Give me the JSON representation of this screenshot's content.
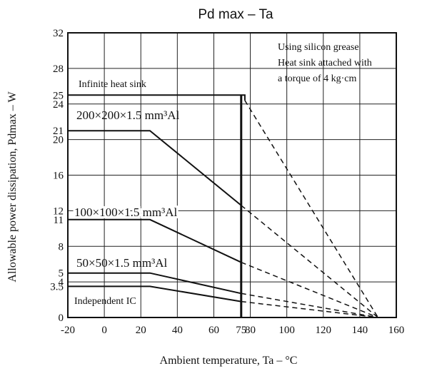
{
  "chart_data": {
    "type": "line",
    "title": "Pd max – Ta",
    "xlabel": "Ambient temperature, Ta – °C",
    "ylabel": "Allowable power dissipation, Pdmax – W",
    "xlim": [
      -20,
      160
    ],
    "ylim": [
      0,
      32
    ],
    "grid": true,
    "x_ticks": [
      {
        "value": -20,
        "label": "-20"
      },
      {
        "value": 0,
        "label": "0"
      },
      {
        "value": 20,
        "label": "20"
      },
      {
        "value": 40,
        "label": "40"
      },
      {
        "value": 60,
        "label": "60"
      },
      {
        "value": 75,
        "label": "75"
      },
      {
        "value": 80,
        "label": "80"
      },
      {
        "value": 100,
        "label": "100"
      },
      {
        "value": 120,
        "label": "120"
      },
      {
        "value": 140,
        "label": "140"
      },
      {
        "value": 160,
        "label": "160"
      }
    ],
    "y_ticks": [
      {
        "value": 0,
        "label": "0"
      },
      {
        "value": 3.5,
        "label": "3.5"
      },
      {
        "value": 4,
        "label": "4"
      },
      {
        "value": 5,
        "label": "5"
      },
      {
        "value": 8,
        "label": "8"
      },
      {
        "value": 11,
        "label": "11"
      },
      {
        "value": 12,
        "label": "12"
      },
      {
        "value": 16,
        "label": "16"
      },
      {
        "value": 20,
        "label": "20"
      },
      {
        "value": 21,
        "label": "21"
      },
      {
        "value": 24,
        "label": "24"
      },
      {
        "value": 25,
        "label": "25"
      },
      {
        "value": 28,
        "label": "28"
      },
      {
        "value": 32,
        "label": "32"
      }
    ],
    "x_grid": [
      0,
      20,
      40,
      60,
      80,
      100,
      120,
      140
    ],
    "y_grid": [
      4,
      8,
      12,
      16,
      20,
      24,
      28
    ],
    "cutoff_x": 75,
    "annotation": [
      "Using silicon grease",
      "Heat sink attached with",
      "a torque of 4 kg·cm"
    ],
    "series": [
      {
        "name": "Infinite heat sink",
        "solid": [
          [
            -20,
            25
          ],
          [
            77,
            25
          ],
          [
            77,
            24.4
          ]
        ],
        "dashed": [
          [
            77,
            24.4
          ],
          [
            150,
            0
          ]
        ]
      },
      {
        "name": "200×200×1.5 mm³Al",
        "solid": [
          [
            -20,
            21
          ],
          [
            25,
            21
          ],
          [
            75,
            12.6
          ]
        ],
        "dashed": [
          [
            75,
            12.6
          ],
          [
            150,
            0
          ]
        ]
      },
      {
        "name": "100×100×1.5 mm³Al",
        "solid": [
          [
            -20,
            11
          ],
          [
            25,
            11
          ],
          [
            75,
            6.2
          ]
        ],
        "dashed": [
          [
            75,
            6.2
          ],
          [
            150,
            0
          ]
        ]
      },
      {
        "name": "50×50×1.5 mm³Al",
        "solid": [
          [
            -20,
            5
          ],
          [
            25,
            5
          ],
          [
            75,
            2.7
          ]
        ],
        "dashed": [
          [
            75,
            2.7
          ],
          [
            150,
            0
          ]
        ]
      },
      {
        "name": "Independent IC",
        "solid": [
          [
            -20,
            3.5
          ],
          [
            25,
            3.5
          ],
          [
            75,
            1.8
          ]
        ],
        "dashed": [
          [
            75,
            1.8
          ],
          [
            150,
            0
          ]
        ]
      }
    ]
  }
}
